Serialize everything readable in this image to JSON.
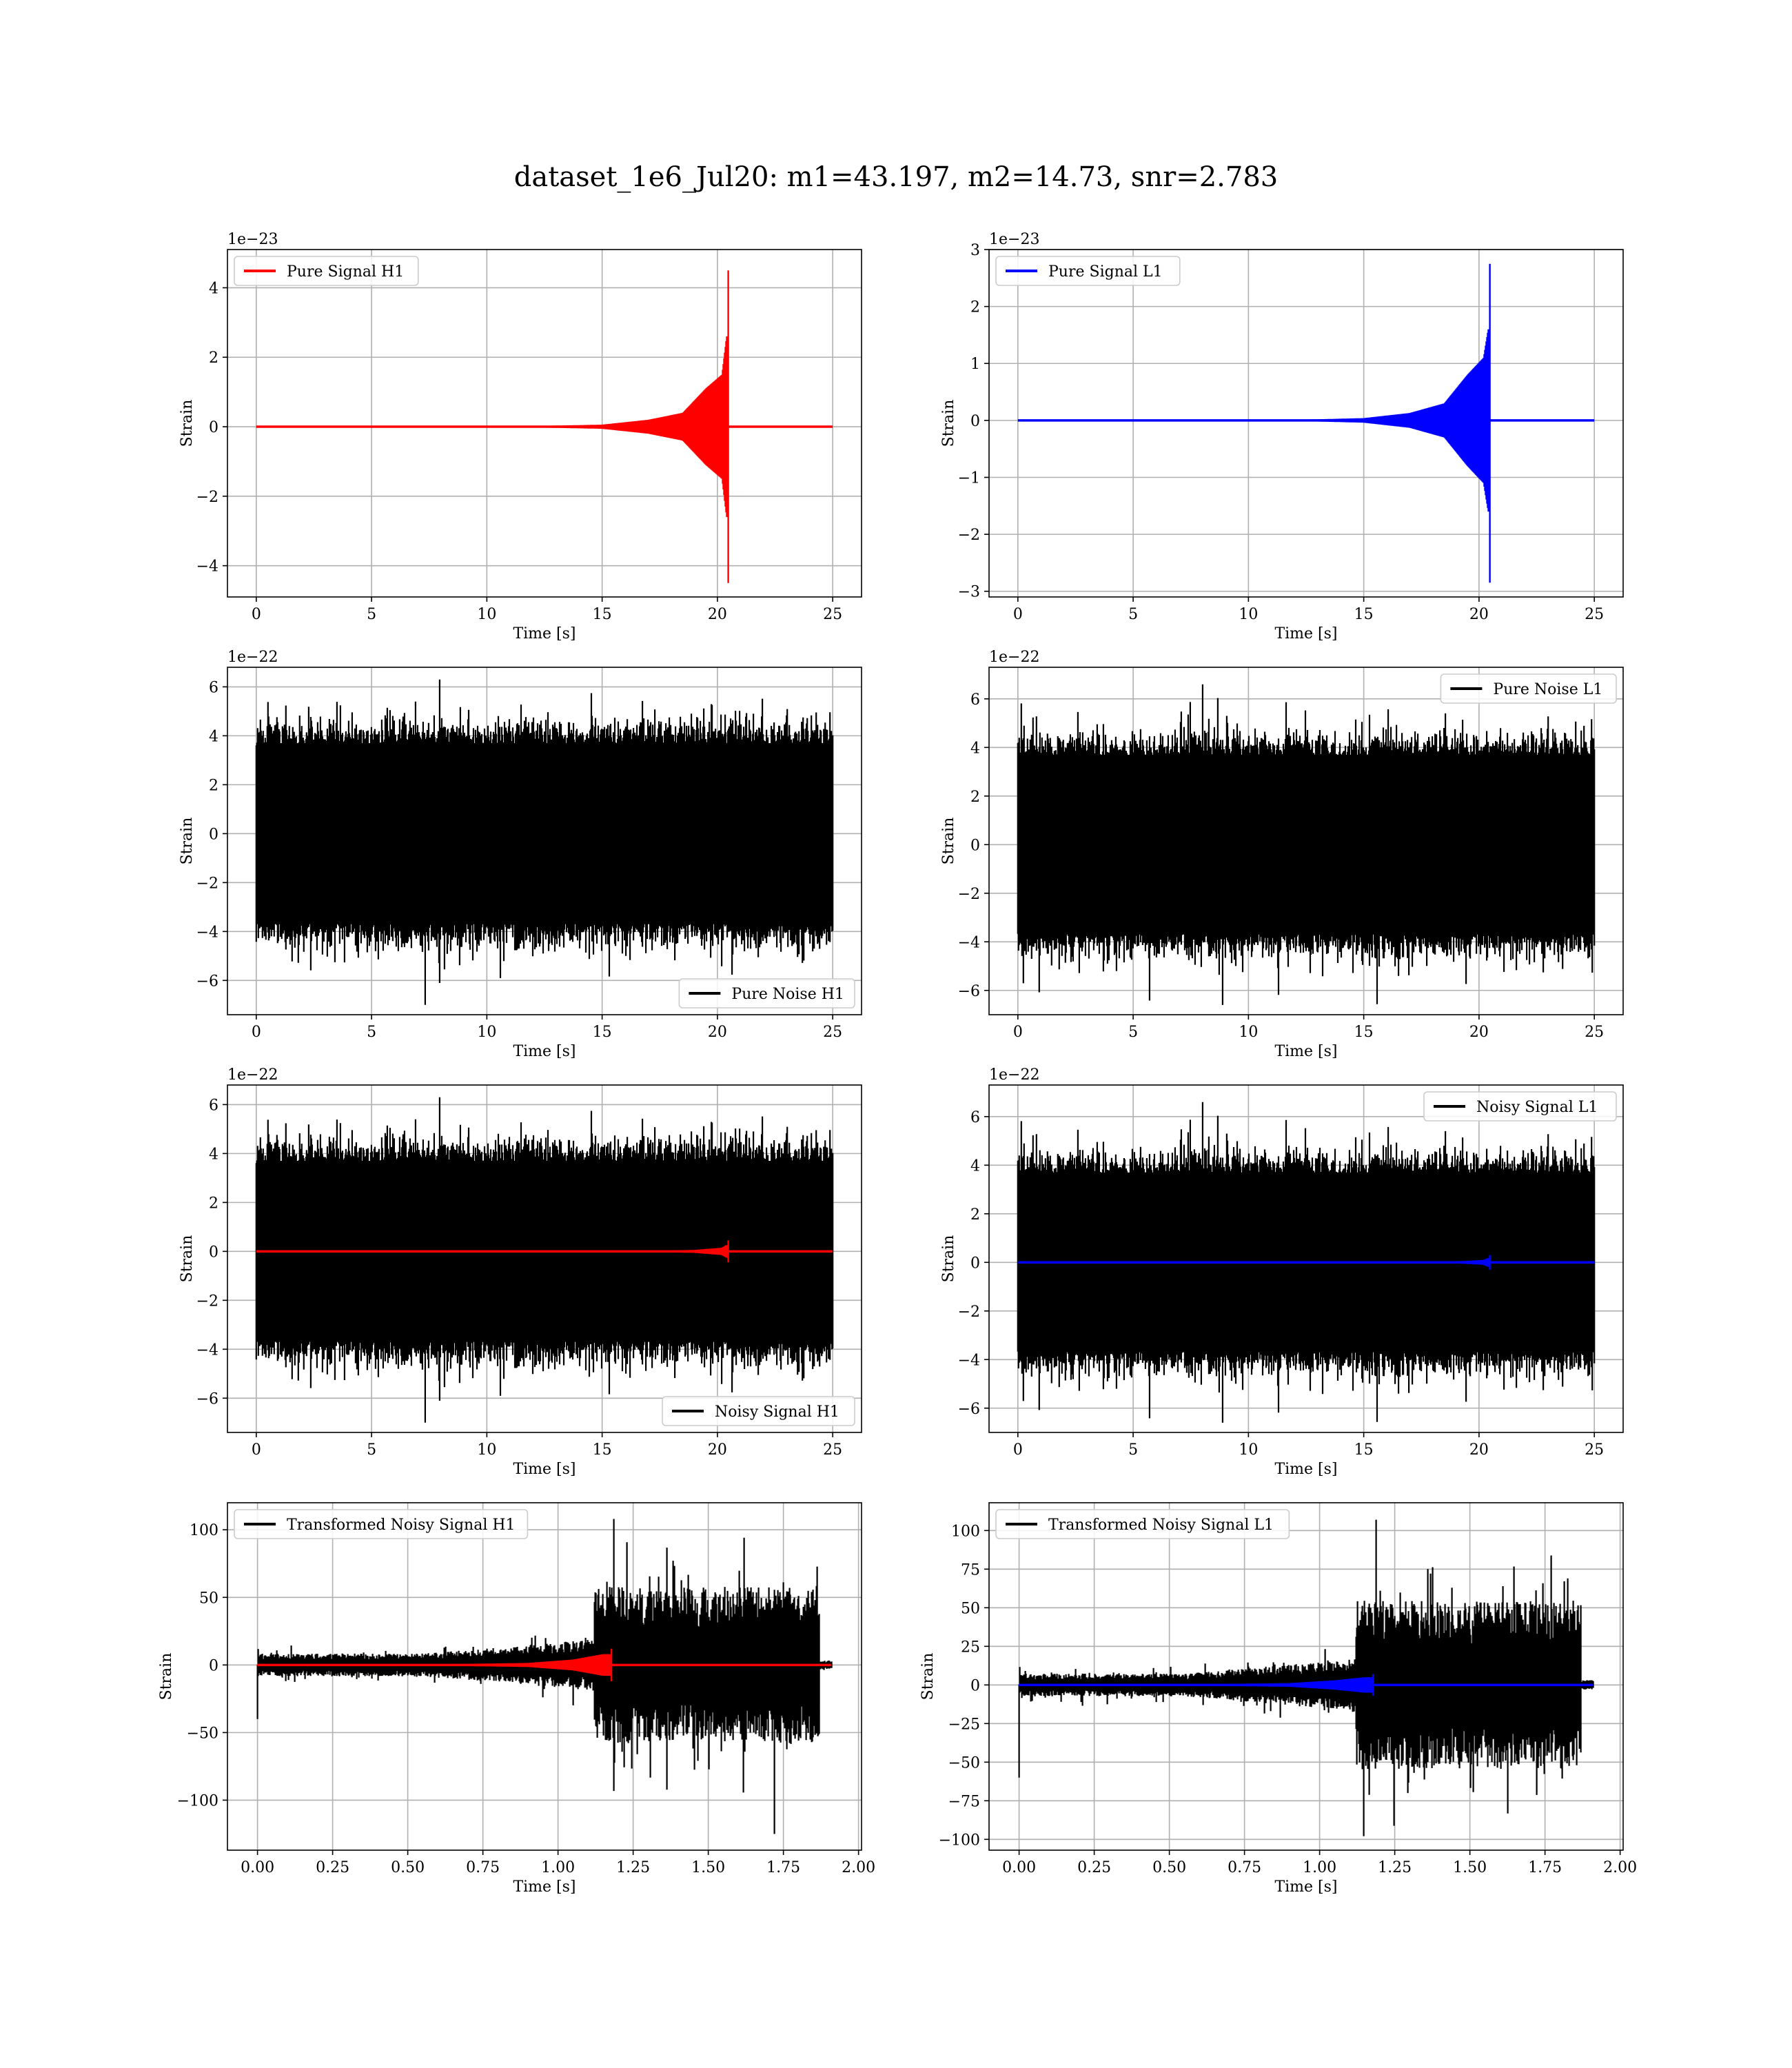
{
  "chart_data": {
    "title": "dataset_1e6_Jul20: m1=43.197, m2=14.73, snr=2.783",
    "panels": [
      {
        "type": "line",
        "kind": "chirp",
        "series": [
          {
            "name": "Pure Signal H1",
            "color": "#ff0000"
          }
        ],
        "x": {
          "label": "Time [s]",
          "range": [
            -1.25,
            26.25
          ],
          "ticks": [
            0,
            5,
            10,
            15,
            20,
            25
          ],
          "tick_labels": [
            "0",
            "5",
            "10",
            "15",
            "20",
            "25"
          ]
        },
        "y": {
          "label": "Strain",
          "range": [
            -4.9,
            5.1
          ],
          "ticks": [
            -4,
            -2,
            0,
            2,
            4
          ],
          "tick_labels": [
            "−4",
            "−2",
            "0",
            "2",
            "4"
          ],
          "offset": "1e−23"
        },
        "legend_loc": "upper left",
        "signal": {
          "t_start": 0,
          "t_end": 25,
          "t_merger": 20.5,
          "peak_max": 4.5,
          "peak_min": -4.5,
          "envelope": [
            [
              12,
              0.02
            ],
            [
              15,
              0.06
            ],
            [
              17,
              0.2
            ],
            [
              18.5,
              0.4
            ],
            [
              19.5,
              1.1
            ],
            [
              20.2,
              1.5
            ],
            [
              20.4,
              2.6
            ]
          ]
        },
        "grid": true
      },
      {
        "type": "line",
        "kind": "chirp",
        "series": [
          {
            "name": "Pure Signal L1",
            "color": "#0000ff"
          }
        ],
        "x": {
          "label": "Time [s]",
          "range": [
            -1.25,
            26.25
          ],
          "ticks": [
            0,
            5,
            10,
            15,
            20,
            25
          ],
          "tick_labels": [
            "0",
            "5",
            "10",
            "15",
            "20",
            "25"
          ]
        },
        "y": {
          "label": "Strain",
          "range": [
            -3.1,
            3.0
          ],
          "ticks": [
            -3,
            -2,
            -1,
            0,
            1,
            2,
            3
          ],
          "tick_labels": [
            "−3",
            "−2",
            "−1",
            "0",
            "1",
            "2",
            "3"
          ],
          "offset": "1e−23"
        },
        "legend_loc": "upper left",
        "signal": {
          "t_start": 0,
          "t_end": 25,
          "t_merger": 20.5,
          "peak_max": 2.75,
          "peak_min": -2.85,
          "envelope": [
            [
              12,
              0.01
            ],
            [
              15,
              0.04
            ],
            [
              17,
              0.13
            ],
            [
              18.5,
              0.3
            ],
            [
              19.5,
              0.8
            ],
            [
              20.2,
              1.1
            ],
            [
              20.4,
              1.6
            ]
          ]
        },
        "grid": true
      },
      {
        "type": "line",
        "kind": "noise",
        "series": [
          {
            "name": "Pure Noise H1",
            "color": "#000000"
          }
        ],
        "x": {
          "label": "Time [s]",
          "range": [
            -1.25,
            26.25
          ],
          "ticks": [
            0,
            5,
            10,
            15,
            20,
            25
          ],
          "tick_labels": [
            "0",
            "5",
            "10",
            "15",
            "20",
            "25"
          ]
        },
        "y": {
          "label": "Strain",
          "range": [
            -7.4,
            6.8
          ],
          "ticks": [
            -6,
            -4,
            -2,
            0,
            2,
            4,
            6
          ],
          "tick_labels": [
            "−6",
            "−4",
            "−2",
            "0",
            "2",
            "4",
            "6"
          ],
          "offset": "1e−22"
        },
        "legend_loc": "lower right",
        "noise": {
          "t_start": 0,
          "t_end": 25,
          "max": 6.3,
          "min": -7.0,
          "seed": 11
        },
        "grid": true
      },
      {
        "type": "line",
        "kind": "noise",
        "series": [
          {
            "name": "Pure Noise L1",
            "color": "#000000"
          }
        ],
        "x": {
          "label": "Time [s]",
          "range": [
            -1.25,
            26.25
          ],
          "ticks": [
            0,
            5,
            10,
            15,
            20,
            25
          ],
          "tick_labels": [
            "0",
            "5",
            "10",
            "15",
            "20",
            "25"
          ]
        },
        "y": {
          "label": "Strain",
          "range": [
            -7.0,
            7.3
          ],
          "ticks": [
            -6,
            -4,
            -2,
            0,
            2,
            4,
            6
          ],
          "tick_labels": [
            "−6",
            "−4",
            "−2",
            "0",
            "2",
            "4",
            "6"
          ],
          "offset": "1e−22"
        },
        "legend_loc": "upper right",
        "noise": {
          "t_start": 0,
          "t_end": 25,
          "max": 6.6,
          "min": -6.6,
          "seed": 23
        },
        "grid": true
      },
      {
        "type": "line",
        "kind": "noisy",
        "series": [
          {
            "name": "Noisy Signal H1",
            "color": "#000000"
          },
          {
            "color": "#ff0000"
          }
        ],
        "x": {
          "label": "Time [s]",
          "range": [
            -1.25,
            26.25
          ],
          "ticks": [
            0,
            5,
            10,
            15,
            20,
            25
          ],
          "tick_labels": [
            "0",
            "5",
            "10",
            "15",
            "20",
            "25"
          ]
        },
        "y": {
          "label": "Strain",
          "range": [
            -7.4,
            6.8
          ],
          "ticks": [
            -6,
            -4,
            -2,
            0,
            2,
            4,
            6
          ],
          "tick_labels": [
            "−6",
            "−4",
            "−2",
            "0",
            "2",
            "4",
            "6"
          ],
          "offset": "1e−22"
        },
        "legend_loc": "lower right",
        "noise": {
          "t_start": 0,
          "t_end": 25,
          "max": 6.3,
          "min": -7.0,
          "seed": 11
        },
        "signal": {
          "t_start": 0,
          "t_end": 25,
          "t_merger": 20.5,
          "peak_max": 0.45,
          "peak_min": -0.45,
          "envelope": [
            [
              17,
              0.02
            ],
            [
              19,
              0.06
            ],
            [
              20.2,
              0.15
            ],
            [
              20.4,
              0.26
            ]
          ]
        },
        "grid": true
      },
      {
        "type": "line",
        "kind": "noisy",
        "series": [
          {
            "name": "Noisy Signal L1",
            "color": "#000000"
          },
          {
            "color": "#0000ff"
          }
        ],
        "x": {
          "label": "Time [s]",
          "range": [
            -1.25,
            26.25
          ],
          "ticks": [
            0,
            5,
            10,
            15,
            20,
            25
          ],
          "tick_labels": [
            "0",
            "5",
            "10",
            "15",
            "20",
            "25"
          ]
        },
        "y": {
          "label": "Strain",
          "range": [
            -7.0,
            7.3
          ],
          "ticks": [
            -6,
            -4,
            -2,
            0,
            2,
            4,
            6
          ],
          "tick_labels": [
            "−6",
            "−4",
            "−2",
            "0",
            "2",
            "4",
            "6"
          ],
          "offset": "1e−22"
        },
        "legend_loc": "upper right",
        "noise": {
          "t_start": 0,
          "t_end": 25,
          "max": 6.6,
          "min": -6.6,
          "seed": 23
        },
        "signal": {
          "t_start": 0,
          "t_end": 25,
          "t_merger": 20.5,
          "peak_max": 0.3,
          "peak_min": -0.3,
          "envelope": [
            [
              17,
              0.01
            ],
            [
              19,
              0.04
            ],
            [
              20.2,
              0.1
            ],
            [
              20.4,
              0.18
            ]
          ]
        },
        "grid": true
      },
      {
        "type": "line",
        "kind": "whitened",
        "series": [
          {
            "name": "Transformed Noisy Signal H1",
            "color": "#000000"
          },
          {
            "color": "#ff0000"
          }
        ],
        "x": {
          "label": "Time [s]",
          "range": [
            -0.1,
            2.01
          ],
          "ticks": [
            0,
            0.25,
            0.5,
            0.75,
            1.0,
            1.25,
            1.5,
            1.75,
            2.0
          ],
          "tick_labels": [
            "0.00",
            "0.25",
            "0.50",
            "0.75",
            "1.00",
            "1.25",
            "1.50",
            "1.75",
            "2.00"
          ]
        },
        "y": {
          "label": "Strain",
          "range": [
            -137,
            120
          ],
          "ticks": [
            -100,
            -50,
            0,
            50,
            100
          ],
          "tick_labels": [
            "−100",
            "−50",
            "0",
            "50",
            "100"
          ]
        },
        "legend_loc": "upper left",
        "whitened": {
          "t_end": 1.91,
          "t_jump": 1.12,
          "t_cut": 1.87,
          "early_amp": 8,
          "mid_amp": 18,
          "late_amp": 55,
          "max": 108,
          "min": -125,
          "spike_start": -40,
          "seed": 7
        },
        "signal": {
          "t_start": 0,
          "t_end": 1.91,
          "t_merger": 1.18,
          "peak_max": 12,
          "peak_min": -12,
          "envelope": [
            [
              0.6,
              0.5
            ],
            [
              0.9,
              1.5
            ],
            [
              1.05,
              4
            ],
            [
              1.15,
              8
            ]
          ]
        },
        "grid": true
      },
      {
        "type": "line",
        "kind": "whitened",
        "series": [
          {
            "name": "Transformed Noisy Signal L1",
            "color": "#000000"
          },
          {
            "color": "#0000ff"
          }
        ],
        "x": {
          "label": "Time [s]",
          "range": [
            -0.1,
            2.01
          ],
          "ticks": [
            0,
            0.25,
            0.5,
            0.75,
            1.0,
            1.25,
            1.5,
            1.75,
            2.0
          ],
          "tick_labels": [
            "0.00",
            "0.25",
            "0.50",
            "0.75",
            "1.00",
            "1.25",
            "1.50",
            "1.75",
            "2.00"
          ]
        },
        "y": {
          "label": "Strain",
          "range": [
            -107,
            118
          ],
          "ticks": [
            -100,
            -75,
            -50,
            -25,
            0,
            25,
            50,
            75,
            100
          ],
          "tick_labels": [
            "−100",
            "−75",
            "−50",
            "−25",
            "0",
            "25",
            "50",
            "75",
            "100"
          ]
        },
        "legend_loc": "upper left",
        "whitened": {
          "t_end": 1.91,
          "t_jump": 1.12,
          "t_cut": 1.87,
          "early_amp": 7,
          "mid_amp": 16,
          "late_amp": 52,
          "max": 107,
          "min": -98,
          "spike_start": -60,
          "seed": 19
        },
        "signal": {
          "t_start": 0,
          "t_end": 1.91,
          "t_merger": 1.18,
          "peak_max": 7,
          "peak_min": -7,
          "envelope": [
            [
              0.6,
              0.4
            ],
            [
              0.9,
              1.2
            ],
            [
              1.05,
              3
            ],
            [
              1.15,
              5
            ]
          ]
        },
        "grid": true
      }
    ]
  }
}
